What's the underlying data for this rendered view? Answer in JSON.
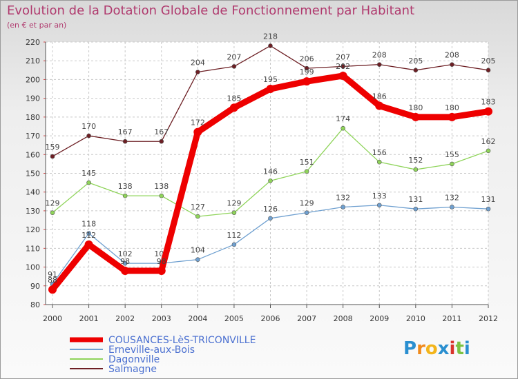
{
  "chart_data": {
    "type": "line",
    "title": "Evolution de la Dotation Globale de Fonctionnement par Habitant",
    "subtitle": "(en € et par an)",
    "xlabel": "",
    "ylabel": "",
    "ylim": [
      80,
      220
    ],
    "yticks": [
      80,
      90,
      100,
      110,
      120,
      130,
      140,
      150,
      160,
      170,
      180,
      190,
      200,
      210,
      220
    ],
    "x": [
      "2000",
      "2001",
      "2002",
      "2003",
      "2004",
      "2005",
      "2006",
      "2007",
      "2008",
      "2009",
      "2010",
      "2011",
      "2012"
    ],
    "grid": true,
    "legend_position": "bottom-left",
    "series": [
      {
        "name": "Salmagne",
        "color": "#6d1f24",
        "values": [
          159,
          170,
          167,
          167,
          204,
          207,
          218,
          206,
          207,
          208,
          205,
          208,
          205
        ]
      },
      {
        "name": "Dagonville",
        "color": "#8fd45a",
        "values": [
          129,
          145,
          138,
          138,
          127,
          129,
          146,
          151,
          174,
          156,
          152,
          155,
          162
        ]
      },
      {
        "name": "Erneville-aux-Bois",
        "color": "#6fa0d0",
        "values": [
          91,
          118,
          102,
          102,
          104,
          112,
          126,
          129,
          132,
          133,
          131,
          132,
          131
        ]
      },
      {
        "name": "COUSANCES-LèS-TRICONVILLE",
        "color": "#ee0000",
        "values": [
          88,
          112,
          98,
          98,
          172,
          185,
          195,
          199,
          202,
          186,
          180,
          180,
          183
        ]
      }
    ],
    "legend": [
      "COUSANCES-LèS-TRICONVILLE",
      "Erneville-aux-Bois",
      "Dagonville",
      "Salmagne"
    ]
  },
  "brand": {
    "letters": [
      "P",
      "r",
      "o",
      "x",
      "i",
      "t",
      "i"
    ],
    "colors": [
      "#2a8fd0",
      "#f08a1c",
      "#f3b51b",
      "#2a8fd0",
      "#d9342b",
      "#7cc242",
      "#2a8fd0"
    ]
  }
}
